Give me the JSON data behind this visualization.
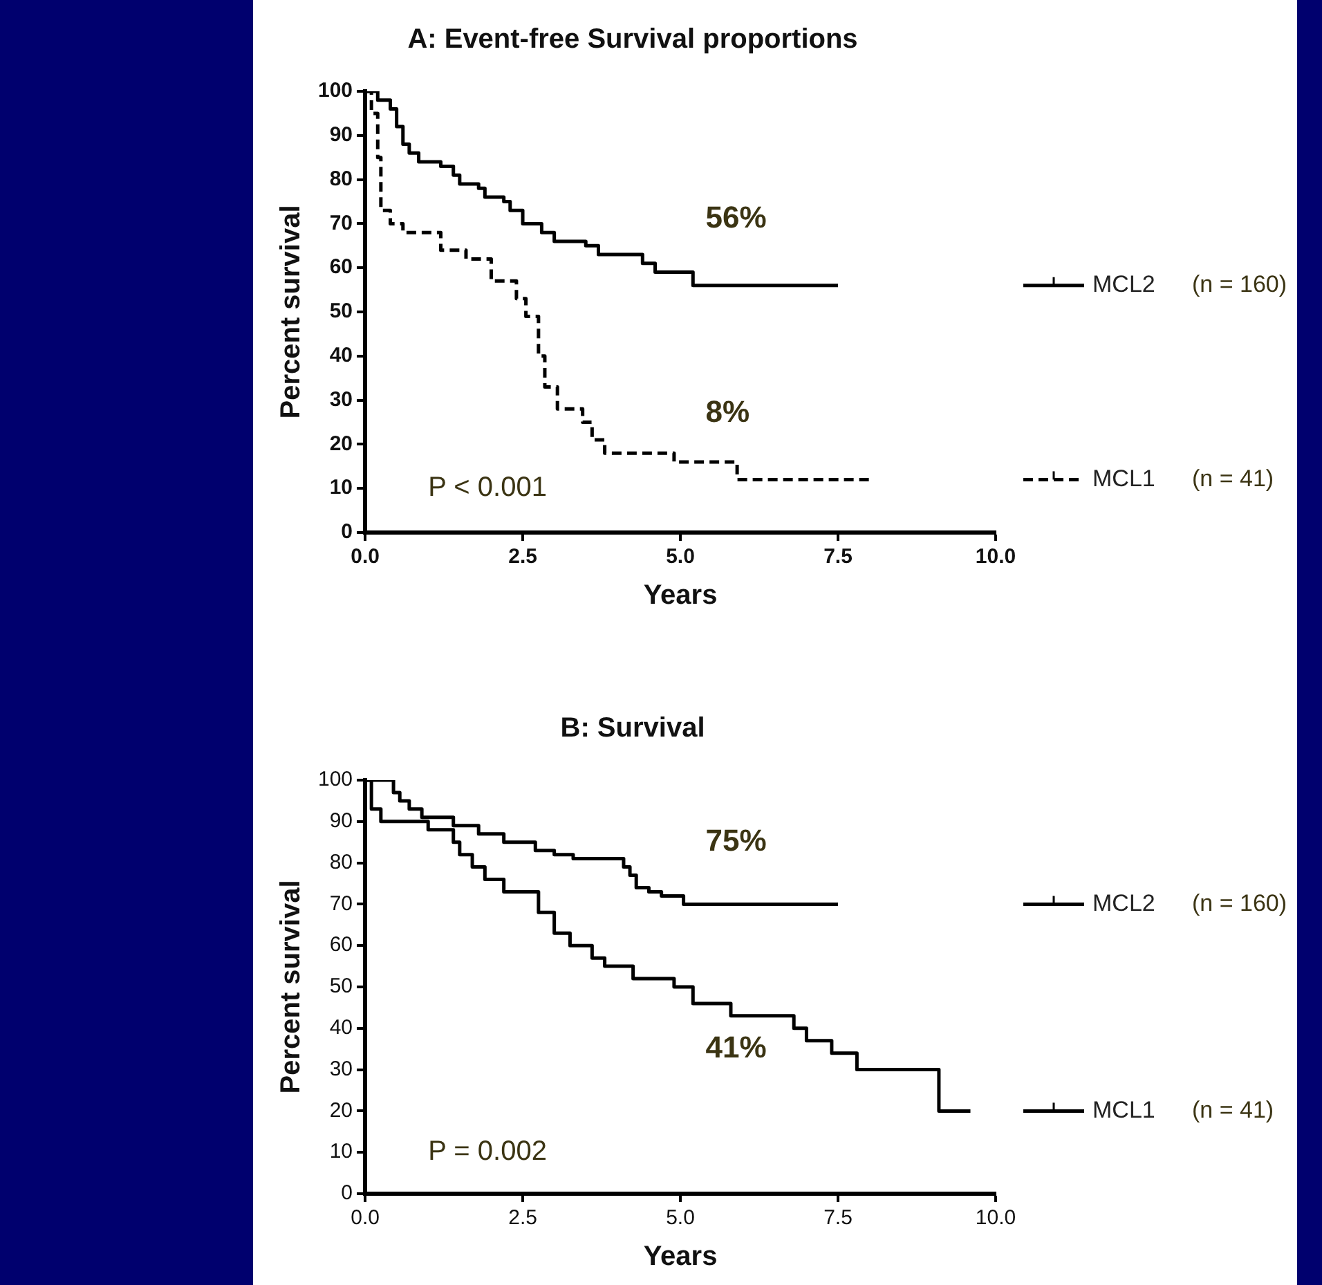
{
  "chart_data": [
    {
      "type": "step",
      "title": "A: Event-free Survival proportions",
      "xlabel": "Years",
      "ylabel": "Percent survival",
      "xlim": [
        0,
        10
      ],
      "xticks": [
        {
          "value": 0,
          "label": "0.0"
        },
        {
          "value": 2.5,
          "label": "2.5"
        },
        {
          "value": 5,
          "label": "5.0"
        },
        {
          "value": 7.5,
          "label": "7.5"
        },
        {
          "value": 10,
          "label": "10.0"
        }
      ],
      "ylim": [
        0,
        100
      ],
      "yticks": [
        0,
        10,
        20,
        30,
        40,
        50,
        60,
        70,
        80,
        90,
        100
      ],
      "grid": false,
      "legend": "right",
      "marker": "none",
      "series": [
        {
          "name": "MCL2",
          "color": "#000000",
          "line_style": "solid",
          "x": [
            0,
            0.2,
            0.4,
            0.5,
            0.6,
            0.7,
            0.85,
            1.2,
            1.4,
            1.5,
            1.8,
            1.9,
            2.2,
            2.3,
            2.5,
            2.8,
            3.0,
            3.5,
            3.7,
            4.4,
            4.6,
            5.2,
            7.5
          ],
          "values": [
            100,
            98,
            96,
            92,
            88,
            86,
            84,
            83,
            81,
            79,
            78,
            76,
            75,
            73,
            70,
            68,
            66,
            65,
            63,
            61,
            59,
            56,
            56
          ]
        },
        {
          "name": "MCL1",
          "color": "#000000",
          "line_style": "dashed",
          "x": [
            0,
            0.1,
            0.2,
            0.25,
            0.4,
            0.6,
            1.2,
            1.6,
            2.0,
            2.4,
            2.55,
            2.75,
            2.85,
            3.05,
            3.45,
            3.6,
            3.8,
            4.9,
            5.9,
            8.0
          ],
          "values": [
            100,
            95,
            85,
            73,
            70,
            68,
            64,
            62,
            57,
            53,
            49,
            40,
            33,
            28,
            25,
            21,
            18,
            16,
            12,
            12
          ]
        }
      ],
      "annotations": [
        "(n = 160)",
        "(n = 41)",
        "56%",
        "8%",
        "P < 0.001"
      ]
    },
    {
      "type": "step",
      "title": "B: Survival",
      "xlabel": "Years",
      "ylabel": "Percent survival",
      "xlim": [
        0,
        10
      ],
      "xticks": [
        {
          "value": 0,
          "label": "0.0"
        },
        {
          "value": 2.5,
          "label": "2.5"
        },
        {
          "value": 5,
          "label": "5.0"
        },
        {
          "value": 7.5,
          "label": "7.5"
        },
        {
          "value": 10,
          "label": "10.0"
        }
      ],
      "ylim": [
        0,
        100
      ],
      "yticks": [
        0,
        10,
        20,
        30,
        40,
        50,
        60,
        70,
        80,
        90,
        100
      ],
      "grid": false,
      "legend": "right",
      "marker": "none",
      "series": [
        {
          "name": "MCL2",
          "color": "#000000",
          "line_style": "solid",
          "x": [
            0,
            0.45,
            0.55,
            0.7,
            0.9,
            1.4,
            1.8,
            2.2,
            2.7,
            3.0,
            3.3,
            4.1,
            4.2,
            4.3,
            4.5,
            4.7,
            5.05,
            7.5
          ],
          "values": [
            100,
            97,
            95,
            93,
            91,
            89,
            87,
            85,
            83,
            82,
            81,
            79,
            77,
            74,
            73,
            72,
            70,
            70
          ]
        },
        {
          "name": "MCL1",
          "color": "#000000",
          "line_style": "solid",
          "x": [
            0,
            0.1,
            0.25,
            1.0,
            1.4,
            1.5,
            1.7,
            1.9,
            2.2,
            2.75,
            3.0,
            3.25,
            3.6,
            3.8,
            4.25,
            4.9,
            5.2,
            5.8,
            6.8,
            7.0,
            7.4,
            7.8,
            9.1,
            9.6
          ],
          "values": [
            100,
            93,
            90,
            88,
            85,
            82,
            79,
            76,
            73,
            68,
            63,
            60,
            57,
            55,
            52,
            50,
            46,
            43,
            40,
            37,
            34,
            30,
            20,
            20
          ]
        }
      ],
      "annotations": [
        "(n = 160)",
        "(n = 41)",
        "75%",
        "41%",
        "P = 0.002"
      ]
    }
  ]
}
